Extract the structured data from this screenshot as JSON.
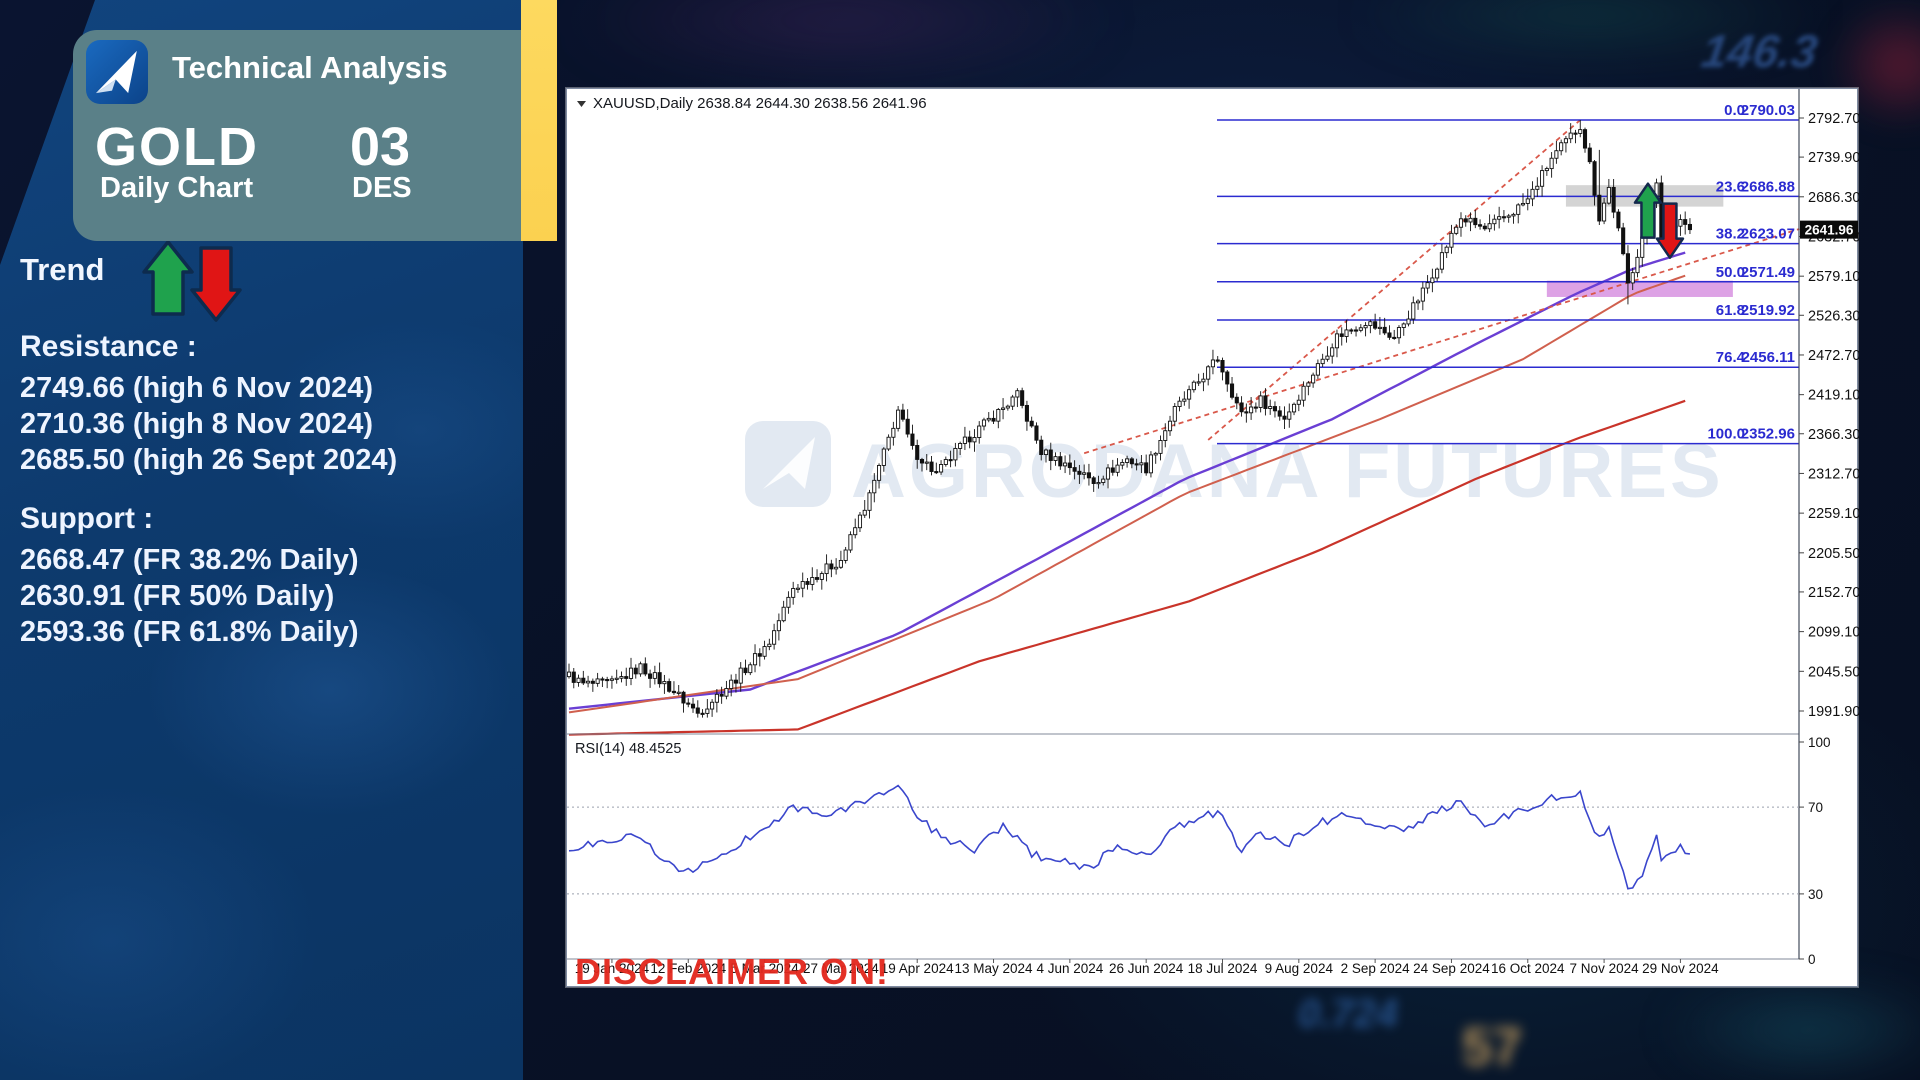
{
  "background": {
    "faint_numbers": [
      "146.3",
      "0.724",
      "57"
    ]
  },
  "panel": {
    "brand": "Technical Analysis",
    "instrument": "GOLD",
    "chart_type": "Daily Chart",
    "date_day": "03",
    "date_month": "DES",
    "trend_label": "Trend",
    "resistance_title": "Resistance :",
    "resistance_items": [
      "2749.66 (high 6 Nov 2024)",
      "2710.36 (high 8 Nov 2024)",
      "2685.50 (high 26 Sept 2024)"
    ],
    "support_title": "Support :",
    "support_items": [
      "2668.47 (FR 38.2% Daily)",
      "2630.91 (FR 50% Daily)",
      "2593.36 (FR 61.8% Daily)"
    ]
  },
  "chart_data": {
    "type": "candlestick",
    "symbol": "XAUUSD",
    "timeframe": "Daily",
    "symbol_line": "XAUUSD,Daily  2638.84 2644.30 2638.56 2641.96",
    "ohlc": {
      "open": 2638.84,
      "high": 2644.3,
      "low": 2638.56,
      "close": 2641.96
    },
    "current_price": "2641.96",
    "watermark": "AGRODANA FUTURES",
    "disclaimer": "DISCLAIMER ON!",
    "price_axis": [
      "2792.70",
      "2739.90",
      "2686.30",
      "2632.70",
      "2579.10",
      "2526.30",
      "2472.70",
      "2419.10",
      "2366.30",
      "2312.70",
      "2259.10",
      "2205.50",
      "2152.70",
      "2099.10",
      "2045.50",
      "1991.90"
    ],
    "rsi_label": "RSI(14) 48.4525",
    "rsi_axis": [
      100,
      70,
      30,
      0
    ],
    "rsi_levels": [
      70,
      30
    ],
    "dates": [
      "19 Jan 2024",
      "12 Feb 2024",
      "5 Mar 2024",
      "27 Mar 2024",
      "19 Apr 2024",
      "13 May 2024",
      "4 Jun 2024",
      "26 Jun 2024",
      "18 Jul 2024",
      "9 Aug 2024",
      "2 Sep 2024",
      "24 Sep 2024",
      "16 Oct 2024",
      "7 Nov 2024",
      "29 Nov 2024"
    ],
    "label_start_bar": 9,
    "bars_per_label": 16,
    "bar_count": 236,
    "fibonacci": [
      {
        "ratio": "0.0",
        "price": "2790.03"
      },
      {
        "ratio": "23.6",
        "price": "2686.88"
      },
      {
        "ratio": "38.2",
        "price": "2623.07"
      },
      {
        "ratio": "50.0",
        "price": "2571.49"
      },
      {
        "ratio": "61.8",
        "price": "2519.92"
      },
      {
        "ratio": "76.4",
        "price": "2456.11"
      },
      {
        "ratio": "100.0",
        "price": "2352.96"
      }
    ],
    "price_path": [
      [
        0,
        2040
      ],
      [
        3,
        2028
      ],
      [
        9,
        2029
      ],
      [
        15,
        2051
      ],
      [
        21,
        2024
      ],
      [
        27,
        1989
      ],
      [
        35,
        2036
      ],
      [
        42,
        2085
      ],
      [
        47,
        2158
      ],
      [
        53,
        2180
      ],
      [
        57,
        2196
      ],
      [
        63,
        2282
      ],
      [
        69,
        2398
      ],
      [
        72,
        2345
      ],
      [
        77,
        2312
      ],
      [
        84,
        2362
      ],
      [
        94,
        2418
      ],
      [
        99,
        2342
      ],
      [
        105,
        2322
      ],
      [
        110,
        2302
      ],
      [
        117,
        2332
      ],
      [
        121,
        2320
      ],
      [
        127,
        2398
      ],
      [
        136,
        2468
      ],
      [
        141,
        2392
      ],
      [
        145,
        2412
      ],
      [
        150,
        2388
      ],
      [
        157,
        2458
      ],
      [
        161,
        2498
      ],
      [
        167,
        2518
      ],
      [
        173,
        2496
      ],
      [
        179,
        2558
      ],
      [
        187,
        2658
      ],
      [
        192,
        2642
      ],
      [
        197,
        2662
      ],
      [
        201,
        2682
      ],
      [
        206,
        2738
      ],
      [
        212,
        2783
      ],
      [
        214,
        2730
      ],
      [
        216,
        2658
      ],
      [
        218,
        2698
      ],
      [
        220,
        2640
      ],
      [
        222,
        2568
      ],
      [
        225,
        2632
      ],
      [
        228,
        2710
      ],
      [
        229,
        2632
      ],
      [
        231,
        2642
      ],
      [
        233,
        2656
      ],
      [
        235,
        2642
      ]
    ],
    "wick_overrides_high": [
      [
        212,
        2790.03
      ],
      [
        216,
        2749.66
      ],
      [
        218,
        2710.36
      ]
    ],
    "wick_overrides_low": [
      [
        222,
        2541
      ]
    ],
    "rsi_path": [
      [
        0,
        50
      ],
      [
        14,
        58
      ],
      [
        19,
        47
      ],
      [
        25,
        40
      ],
      [
        31,
        46
      ],
      [
        39,
        58
      ],
      [
        47,
        70
      ],
      [
        55,
        66
      ],
      [
        63,
        74
      ],
      [
        69,
        80
      ],
      [
        73,
        65
      ],
      [
        79,
        55
      ],
      [
        85,
        50
      ],
      [
        91,
        62
      ],
      [
        97,
        48
      ],
      [
        103,
        45
      ],
      [
        109,
        42
      ],
      [
        115,
        52
      ],
      [
        121,
        48
      ],
      [
        127,
        60
      ],
      [
        136,
        68
      ],
      [
        141,
        50
      ],
      [
        145,
        58
      ],
      [
        150,
        52
      ],
      [
        157,
        63
      ],
      [
        163,
        66
      ],
      [
        169,
        62
      ],
      [
        175,
        58
      ],
      [
        181,
        68
      ],
      [
        187,
        72
      ],
      [
        192,
        62
      ],
      [
        197,
        66
      ],
      [
        201,
        70
      ],
      [
        206,
        74
      ],
      [
        212,
        76
      ],
      [
        216,
        55
      ],
      [
        218,
        62
      ],
      [
        222,
        32
      ],
      [
        225,
        40
      ],
      [
        228,
        58
      ],
      [
        229,
        45
      ],
      [
        231,
        48
      ],
      [
        233,
        52
      ],
      [
        235,
        48.4
      ]
    ],
    "moving_averages": [
      {
        "name": "ma-fast-purple",
        "color": "#6a3fd4",
        "width": 2.4,
        "anchors": [
          [
            0,
            1995
          ],
          [
            38,
            2021
          ],
          [
            69,
            2096
          ],
          [
            99,
            2200
          ],
          [
            129,
            2305
          ],
          [
            160,
            2386
          ],
          [
            190,
            2487
          ],
          [
            211,
            2555
          ],
          [
            223,
            2589
          ],
          [
            235,
            2613
          ]
        ]
      },
      {
        "name": "ma-mid-salmon",
        "color": "#d0604e",
        "width": 2,
        "anchors": [
          [
            0,
            1990
          ],
          [
            48,
            2035
          ],
          [
            89,
            2143
          ],
          [
            129,
            2285
          ],
          [
            170,
            2386
          ],
          [
            200,
            2467
          ],
          [
            223,
            2555
          ],
          [
            235,
            2582
          ]
        ]
      },
      {
        "name": "ma-slow-red",
        "color": "#c9342a",
        "width": 2.2,
        "anchors": [
          [
            0,
            1960
          ],
          [
            48,
            1967
          ],
          [
            86,
            2059
          ],
          [
            130,
            2140
          ],
          [
            157,
            2208
          ],
          [
            190,
            2305
          ],
          [
            211,
            2359
          ],
          [
            223,
            2386
          ],
          [
            235,
            2413
          ]
        ]
      }
    ],
    "trendlines": [
      {
        "from": [
          134,
          2358
        ],
        "to": [
          212,
          2790
        ],
        "color": "#d9584a"
      },
      {
        "from": [
          108,
          2340
        ],
        "to": [
          258,
          2643
        ],
        "color": "#d9584a"
      }
    ],
    "boxes": [
      {
        "name": "resistance-zone-box",
        "bars": [
          209,
          242
        ],
        "prices": [
          2702,
          2673
        ],
        "color": "#c9c9c9",
        "opacity": 0.8
      },
      {
        "name": "support-zone-box",
        "bars": [
          205,
          244
        ],
        "prices": [
          2573,
          2551
        ],
        "color": "#d183dc",
        "opacity": 0.75
      }
    ],
    "arrow_marker": {
      "bar": 228.5,
      "price": 2704
    },
    "colors": {
      "fib": "#2b2bd0",
      "rsi": "#3a46cc",
      "candle_up": "#ffffff",
      "candle_down": "#111111",
      "candle_stroke": "#111111",
      "axis_text": "#111111",
      "tag_bg": "#0a0a0a",
      "tag_text": "#ffffff",
      "disclaimer": "#e3271c",
      "watermark": "#e2e9f2",
      "arrow_up": "#1fa24d",
      "arrow_down": "#e01515",
      "arrow_outline": "#14294d"
    }
  }
}
